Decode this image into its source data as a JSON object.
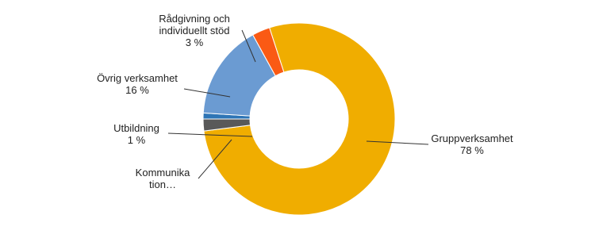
{
  "chart_data": {
    "type": "donut",
    "categories": [
      "Gruppverksamhet",
      "Kommunikation…",
      "Utbildning",
      "Övrig verksamhet",
      "Rådgivning och individuellt stöd"
    ],
    "values": [
      78,
      2,
      1,
      16,
      3
    ],
    "value_labels": [
      "78 %",
      null,
      "1 %",
      "16 %",
      "3 %"
    ],
    "colors": [
      "#f0ad00",
      "#595959",
      "#2e75b6",
      "#6b9bd2",
      "#fa5a14"
    ]
  }
}
